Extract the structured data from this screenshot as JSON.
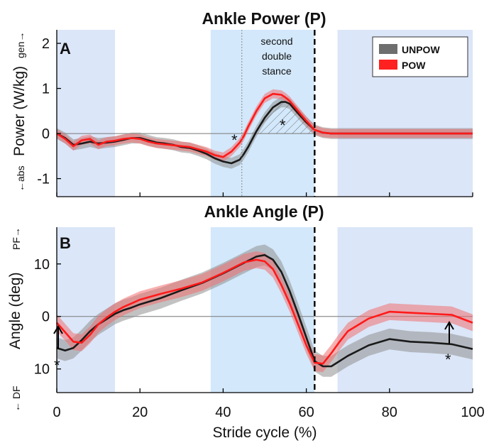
{
  "chart_data": [
    {
      "type": "line",
      "panel": "A",
      "title": "Ankle Power (P)",
      "ylabel": "Power (W/kg)",
      "ylabel_arrow_bottom": "←abs",
      "ylabel_arrow_top": "gen→",
      "xlabel": "",
      "xlim": [
        0,
        100
      ],
      "ylim": [
        -1.4,
        2.3
      ],
      "yticks": [
        "-1",
        "0",
        "1",
        "2"
      ],
      "annotation": [
        "second",
        "double",
        "stance"
      ],
      "asterisks": [
        "*",
        "*"
      ],
      "legend": {
        "position": "top-right",
        "entries": [
          "UNPOW",
          "POW"
        ]
      },
      "series": [
        {
          "name": "UNPOW",
          "color": "#1a1a1a",
          "band_color": "#8f8f8f",
          "x": [
            0,
            2,
            4,
            6,
            8,
            10,
            12,
            14,
            16,
            18,
            20,
            22,
            24,
            26,
            28,
            30,
            32,
            34,
            36,
            38,
            40,
            42,
            44,
            45,
            46,
            48,
            50,
            52,
            54,
            55,
            56,
            58,
            60,
            62,
            64,
            66,
            68,
            70,
            75,
            80,
            85,
            90,
            95,
            100
          ],
          "y": [
            0,
            -0.1,
            -0.25,
            -0.22,
            -0.18,
            -0.22,
            -0.2,
            -0.18,
            -0.14,
            -0.1,
            -0.1,
            -0.15,
            -0.2,
            -0.22,
            -0.25,
            -0.3,
            -0.32,
            -0.38,
            -0.45,
            -0.55,
            -0.62,
            -0.66,
            -0.58,
            -0.45,
            -0.3,
            0.05,
            0.35,
            0.58,
            0.7,
            0.7,
            0.66,
            0.45,
            0.25,
            0.08,
            0.02,
            0,
            0,
            0,
            0,
            0,
            0,
            0,
            0,
            0
          ],
          "band": 0.12
        },
        {
          "name": "POW",
          "color": "#ff1a1a",
          "band_color": "#f07070",
          "x": [
            0,
            2,
            4,
            6,
            8,
            10,
            12,
            14,
            16,
            18,
            20,
            22,
            24,
            26,
            28,
            30,
            32,
            34,
            36,
            38,
            40,
            42,
            44,
            45,
            46,
            48,
            50,
            52,
            54,
            55,
            56,
            58,
            60,
            62,
            64,
            66,
            68,
            70,
            75,
            80,
            85,
            90,
            95,
            100
          ],
          "y": [
            0,
            -0.12,
            -0.28,
            -0.15,
            -0.12,
            -0.25,
            -0.18,
            -0.16,
            -0.12,
            -0.1,
            -0.12,
            -0.18,
            -0.22,
            -0.24,
            -0.26,
            -0.28,
            -0.3,
            -0.35,
            -0.4,
            -0.48,
            -0.52,
            -0.4,
            -0.2,
            -0.05,
            0.15,
            0.5,
            0.78,
            0.88,
            0.86,
            0.8,
            0.72,
            0.5,
            0.28,
            0.08,
            0.02,
            0,
            0,
            0,
            0,
            0,
            0,
            0,
            0,
            0
          ],
          "band": 0.1
        }
      ]
    },
    {
      "type": "line",
      "panel": "B",
      "title": "Ankle Angle (P)",
      "ylabel": "Angle (deg)",
      "ylabel_arrow_bottom": "← DF",
      "ylabel_arrow_top": "PF→",
      "xlabel": "Stride cycle (%)",
      "xlim": [
        0,
        100
      ],
      "ylim": [
        -14.5,
        17
      ],
      "xticks": [
        "0",
        "20",
        "40",
        "60",
        "80",
        "100"
      ],
      "yticks": [
        "10",
        "0",
        "10"
      ],
      "ytick_values": [
        10,
        0,
        -10
      ],
      "asterisks": [
        "*",
        "*"
      ],
      "series": [
        {
          "name": "UNPOW",
          "color": "#1a1a1a",
          "band_color": "#8f8f8f",
          "x": [
            0,
            2,
            4,
            6,
            8,
            10,
            12,
            14,
            16,
            18,
            20,
            25,
            30,
            35,
            40,
            45,
            48,
            50,
            52,
            54,
            56,
            58,
            60,
            62,
            64,
            66,
            68,
            70,
            75,
            80,
            85,
            90,
            95,
            100
          ],
          "y": [
            -6,
            -6.5,
            -6,
            -4.5,
            -2.8,
            -1.5,
            -0.5,
            0.5,
            1.2,
            1.7,
            2.3,
            3.5,
            5,
            6.4,
            8.2,
            10.2,
            11.4,
            11.7,
            10.8,
            8.5,
            4.8,
            0.5,
            -4,
            -8.5,
            -9.5,
            -9.5,
            -8.5,
            -7.5,
            -5.5,
            -4.3,
            -4.8,
            -5,
            -5.3,
            -6.2
          ],
          "band": 2.0
        },
        {
          "name": "POW",
          "color": "#ff1a1a",
          "band_color": "#f07070",
          "x": [
            0,
            2,
            4,
            6,
            8,
            10,
            12,
            14,
            16,
            18,
            20,
            25,
            30,
            35,
            40,
            45,
            48,
            50,
            52,
            54,
            56,
            58,
            60,
            62,
            64,
            66,
            68,
            70,
            75,
            80,
            85,
            90,
            95,
            100
          ],
          "y": [
            -1.2,
            -3,
            -4.8,
            -5,
            -3.5,
            -1.5,
            -0.2,
            0.9,
            1.8,
            2.5,
            3.2,
            4.3,
            5.3,
            6.5,
            8.3,
            10.3,
            10.8,
            10.5,
            9,
            6,
            2.5,
            -1.5,
            -5.5,
            -8.8,
            -9,
            -7,
            -4.8,
            -2.8,
            -0.4,
            0.9,
            0.7,
            0.5,
            0.3,
            -1.2
          ],
          "band": 1.6
        }
      ]
    }
  ]
}
